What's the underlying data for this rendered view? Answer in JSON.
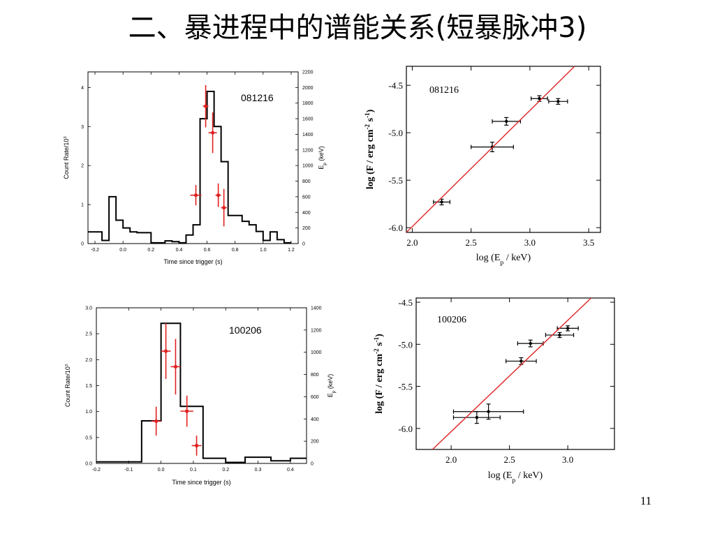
{
  "slide": {
    "title": "二、暴进程中的谱能关系(短暴脉冲3)",
    "page_number": "11"
  },
  "chart_data": [
    {
      "id": "p1",
      "type": "line",
      "subtype": "step-histogram-with-errorbar-points",
      "annotation": "081216",
      "xlabel": "Time since trigger (s)",
      "ylabel": "Count Rate/10³",
      "y2label": "E_p (keV)",
      "xlim": [
        -0.25,
        1.25
      ],
      "ylim": [
        0,
        4.4
      ],
      "y2lim": [
        0,
        2200
      ],
      "xticks": [
        -0.2,
        0.0,
        0.2,
        0.4,
        0.6,
        0.8,
        1.0,
        1.2
      ],
      "xtick_labels": [
        "-0.2",
        "0.0",
        "0.2",
        "0.4",
        "0.6",
        "0.8",
        "1.0",
        "1.2"
      ],
      "yticks": [
        0,
        1,
        2,
        3,
        4
      ],
      "ytick_labels": [
        "0",
        "1",
        "2",
        "3",
        "4"
      ],
      "y2ticks": [
        0,
        200,
        400,
        600,
        800,
        1000,
        1200,
        1400,
        1600,
        1800,
        2000,
        2200
      ],
      "y2tick_labels": [
        "0",
        "200",
        "400",
        "600",
        "800",
        "1000",
        "1200",
        "1400",
        "1600",
        "1800",
        "2000",
        "2200"
      ],
      "series": [
        {
          "kind": "step",
          "color": "#000000",
          "edges": [
            -0.25,
            -0.15,
            -0.1,
            -0.05,
            0.0,
            0.05,
            0.1,
            0.15,
            0.2,
            0.3,
            0.35,
            0.4,
            0.45,
            0.5,
            0.55,
            0.6,
            0.65,
            0.7,
            0.75,
            0.8,
            0.85,
            0.9,
            0.95,
            1.0,
            1.05,
            1.1,
            1.15,
            1.2
          ],
          "values": [
            0.3,
            0.08,
            1.2,
            0.6,
            0.4,
            0.3,
            0.28,
            0.28,
            0.02,
            0.07,
            0.05,
            0.02,
            0.22,
            0.48,
            3.2,
            3.9,
            3.0,
            2.1,
            0.72,
            0.72,
            0.57,
            0.48,
            0.31,
            0.08,
            0.3,
            0.1,
            0.02
          ]
        },
        {
          "kind": "points",
          "axis": "y2",
          "color": "#e02020",
          "points": [
            {
              "x": 0.52,
              "y": 620,
              "xerr": 0.04,
              "yerr": 130
            },
            {
              "x": 0.59,
              "y": 1760,
              "xerr": 0.02,
              "yerr": 270
            },
            {
              "x": 0.64,
              "y": 1420,
              "xerr": 0.03,
              "yerr": 260
            },
            {
              "x": 0.68,
              "y": 620,
              "xerr": 0.02,
              "yerr": 150
            },
            {
              "x": 0.72,
              "y": 460,
              "xerr": 0.02,
              "yerr": 240
            }
          ]
        }
      ]
    },
    {
      "id": "p2",
      "type": "scatter",
      "annotation": "081216",
      "xlabel": "log (E_p / keV)",
      "ylabel": "log (F / erg cm^-2 s^-1)",
      "xlim": [
        1.95,
        3.6
      ],
      "ylim": [
        -6.05,
        -4.3
      ],
      "xticks": [
        2.0,
        2.5,
        3.0,
        3.5
      ],
      "xtick_labels": [
        "2.0",
        "2.5",
        "3.0",
        "3.5"
      ],
      "yticks": [
        -4.5,
        -5.0,
        -5.5,
        -6.0
      ],
      "ytick_labels": [
        "-4.5",
        "-5.0",
        "-5.5",
        "-6.0"
      ],
      "series": [
        {
          "kind": "points",
          "color": "#000000",
          "points": [
            {
              "x": 2.25,
              "y": -5.73,
              "xerr": 0.07,
              "yerr": 0.03
            },
            {
              "x": 2.68,
              "y": -5.15,
              "xerr": 0.18,
              "yerr": 0.05
            },
            {
              "x": 2.8,
              "y": -4.88,
              "xerr": 0.12,
              "yerr": 0.04
            },
            {
              "x": 3.08,
              "y": -4.64,
              "xerr": 0.07,
              "yerr": 0.03
            },
            {
              "x": 3.24,
              "y": -4.67,
              "xerr": 0.08,
              "yerr": 0.03
            }
          ]
        },
        {
          "kind": "fit-line",
          "color": "#e03030",
          "from": {
            "x": 1.95,
            "y": -6.05
          },
          "to": {
            "x": 3.38,
            "y": -4.3
          }
        }
      ]
    },
    {
      "id": "p3",
      "type": "line",
      "subtype": "step-histogram-with-errorbar-points",
      "annotation": "100206",
      "xlabel": "Time since trigger (s)",
      "ylabel": "Count Rate/10³",
      "y2label": "E_p (keV)",
      "xlim": [
        -0.2,
        0.45
      ],
      "ylim": [
        0,
        3.0
      ],
      "y2lim": [
        0,
        1400
      ],
      "xticks": [
        -0.2,
        -0.1,
        0.0,
        0.1,
        0.2,
        0.3,
        0.4
      ],
      "xtick_labels": [
        "-0.2",
        "-0.1",
        "0.0",
        "0.1",
        "0.2",
        "0.3",
        "0.4"
      ],
      "yticks": [
        0.0,
        0.5,
        1.0,
        1.5,
        2.0,
        2.5,
        3.0
      ],
      "ytick_labels": [
        "0.0",
        "0.5",
        "1.0",
        "1.5",
        "2.0",
        "2.5",
        "3.0"
      ],
      "y2ticks": [
        0,
        200,
        400,
        600,
        800,
        1000,
        1200,
        1400
      ],
      "y2tick_labels": [
        "0",
        "200",
        "400",
        "600",
        "800",
        "1000",
        "1200",
        "1400"
      ],
      "series": [
        {
          "kind": "step",
          "color": "#000000",
          "edges": [
            -0.2,
            -0.06,
            -0.02,
            0.0,
            0.06,
            0.13,
            0.2,
            0.26,
            0.34,
            0.4,
            0.45
          ],
          "values": [
            0.03,
            0.82,
            0.82,
            2.7,
            1.1,
            0.1,
            0.02,
            0.12,
            0.05,
            0.1
          ],
          "trailing": true
        },
        {
          "kind": "points",
          "axis": "y2",
          "color": "#e02020",
          "points": [
            {
              "x": -0.015,
              "y": 380,
              "xerr": 0.015,
              "yerr": 130
            },
            {
              "x": 0.015,
              "y": 1010,
              "xerr": 0.015,
              "yerr": 250
            },
            {
              "x": 0.045,
              "y": 870,
              "xerr": 0.015,
              "yerr": 250
            },
            {
              "x": 0.08,
              "y": 470,
              "xerr": 0.02,
              "yerr": 140
            },
            {
              "x": 0.11,
              "y": 160,
              "xerr": 0.015,
              "yerr": 90
            }
          ]
        }
      ]
    },
    {
      "id": "p4",
      "type": "scatter",
      "annotation": "100206",
      "xlabel": "log (E_p / keV)",
      "ylabel": "log (F / erg cm^-2 s^-1)",
      "xlim": [
        1.7,
        3.4
      ],
      "ylim": [
        -6.25,
        -4.45
      ],
      "xticks": [
        2.0,
        2.5,
        3.0
      ],
      "xtick_labels": [
        "2.0",
        "2.5",
        "3.0"
      ],
      "yticks": [
        -4.5,
        -5.0,
        -5.5,
        -6.0
      ],
      "ytick_labels": [
        "-4.5",
        "-5.0",
        "-5.5",
        "-6.0"
      ],
      "series": [
        {
          "kind": "points",
          "color": "#000000",
          "points": [
            {
              "x": 2.22,
              "y": -5.87,
              "xerr": 0.2,
              "yerr": 0.07
            },
            {
              "x": 2.32,
              "y": -5.8,
              "xerr": 0.3,
              "yerr": 0.09
            },
            {
              "x": 2.6,
              "y": -5.2,
              "xerr": 0.13,
              "yerr": 0.04
            },
            {
              "x": 2.68,
              "y": -4.99,
              "xerr": 0.11,
              "yerr": 0.04
            },
            {
              "x": 2.93,
              "y": -4.89,
              "xerr": 0.12,
              "yerr": 0.03
            },
            {
              "x": 3.0,
              "y": -4.81,
              "xerr": 0.09,
              "yerr": 0.03
            }
          ]
        },
        {
          "kind": "fit-line",
          "color": "#e03030",
          "from": {
            "x": 1.84,
            "y": -6.25
          },
          "to": {
            "x": 3.2,
            "y": -4.45
          }
        }
      ]
    }
  ]
}
